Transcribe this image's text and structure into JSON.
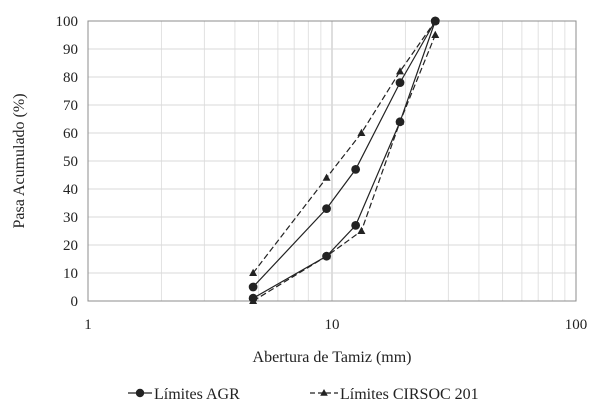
{
  "chart_data": {
    "type": "line",
    "xscale": "log",
    "xlim": [
      1,
      100
    ],
    "ylim": [
      0,
      100
    ],
    "xlabel": "Abertura de Tamiz (mm)",
    "ylabel": "Pasa Acumulado (%)",
    "x_ticks": [
      "1",
      "10",
      "100"
    ],
    "y_ticks": [
      "0",
      "10",
      "20",
      "30",
      "40",
      "50",
      "60",
      "70",
      "80",
      "90",
      "100"
    ],
    "grid": true,
    "legend_position": "bottom",
    "series": [
      {
        "name": "Límites AGR",
        "style": "solid",
        "marker": "circle",
        "color": "#222222",
        "lines": [
          {
            "x": [
              4.75,
              9.5,
              12.5,
              19,
              26.5
            ],
            "y": [
              5,
              33,
              47,
              78,
              100
            ]
          },
          {
            "x": [
              4.75,
              9.5,
              12.5,
              19,
              26.5
            ],
            "y": [
              1,
              16,
              27,
              64,
              100
            ]
          }
        ]
      },
      {
        "name": "Límites CIRSOC 201",
        "style": "dashed",
        "marker": "triangle",
        "color": "#222222",
        "lines": [
          {
            "x": [
              4.75,
              9.5,
              13.2,
              19,
              26.5
            ],
            "y": [
              10,
              44,
              60,
              82,
              100
            ]
          },
          {
            "x": [
              4.75,
              9.5,
              13.2,
              19,
              26.5
            ],
            "y": [
              0,
              16,
              25,
              64,
              95
            ]
          }
        ]
      }
    ]
  }
}
